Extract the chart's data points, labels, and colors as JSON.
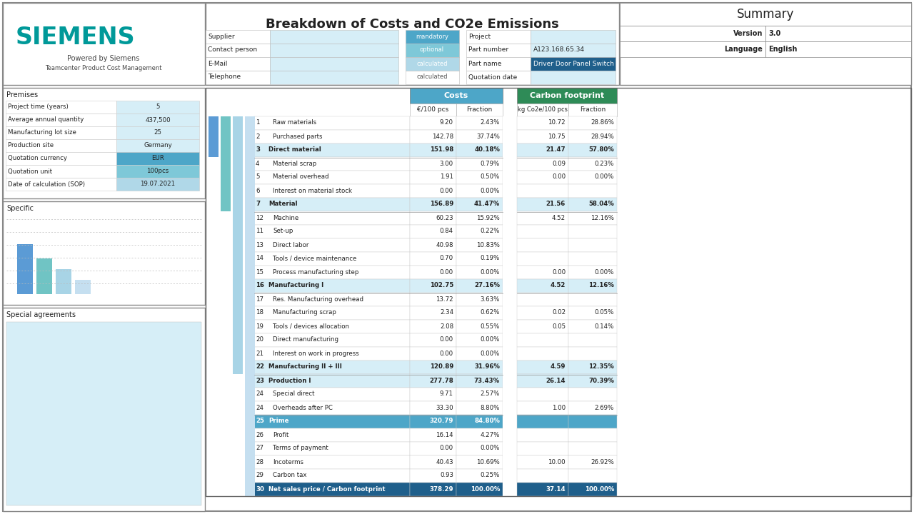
{
  "title": "Breakdown of Costs and CO2e Emissions",
  "siemens_color": "#009999",
  "summary_title": "Summary",
  "summary_version": "3.0",
  "summary_language": "English",
  "teal": "#009999",
  "medium_blue": "#4da6c8",
  "dark_blue": "#1f5f8b",
  "green": "#2e8b57",
  "light_blue": "#d6eef7",
  "lighter_blue": "#e8f6fb",
  "bg_color": "#ffffff",
  "header_rows": [
    "Supplier",
    "Contact person",
    "E-Mail",
    "Telephone"
  ],
  "field_labels": [
    "mandatory",
    "optional",
    "calculated"
  ],
  "field_colors": [
    "#4da6c8",
    "#7ec8d8",
    "#b0d8e8"
  ],
  "proj_labels": [
    "Project",
    "Part number",
    "Part name",
    "Quotation date"
  ],
  "proj_values": [
    "",
    "A123.168.65.34",
    "Driver Door Panel Switch",
    ""
  ],
  "proj_row_colors": [
    "#d6eef7",
    "#d6eef7",
    "#1f5f8b",
    "#d6eef7"
  ],
  "proj_text_colors": [
    "#222222",
    "#222222",
    "#ffffff",
    "#222222"
  ],
  "premises": [
    [
      "Project time (years)",
      "5",
      false
    ],
    [
      "Average annual quantity",
      "437,500",
      true
    ],
    [
      "Manufacturing lot size",
      "25",
      false
    ],
    [
      "Production site",
      "Germany",
      false
    ],
    [
      "Quotation currency",
      "EUR",
      true
    ],
    [
      "Quotation unit",
      "100pcs",
      true
    ],
    [
      "Date of calculation (SOP)",
      "19.07.2021",
      true
    ]
  ],
  "prem_val_special": {
    "EUR": "#4da6c8",
    "100pcs": "#7ec8d8",
    "19.07.2021": "#b0d8e8"
  },
  "rows": [
    {
      "num": "1",
      "name": "Raw materials",
      "cost": "9.20",
      "cost_frac": "2.43%",
      "co2": "10.72",
      "co2_frac": "28.86%",
      "bold": false,
      "special": ""
    },
    {
      "num": "2",
      "name": "Purchased parts",
      "cost": "142.78",
      "cost_frac": "37.74%",
      "co2": "10.75",
      "co2_frac": "28.94%",
      "bold": false,
      "special": ""
    },
    {
      "num": "3",
      "name": "Direct material",
      "cost": "151.98",
      "cost_frac": "40.18%",
      "co2": "21.47",
      "co2_frac": "57.80%",
      "bold": true,
      "special": ""
    },
    {
      "num": "4",
      "name": "Material scrap",
      "cost": "3.00",
      "cost_frac": "0.79%",
      "co2": "0.09",
      "co2_frac": "0.23%",
      "bold": false,
      "special": ""
    },
    {
      "num": "5",
      "name": "Material overhead",
      "cost": "1.91",
      "cost_frac": "0.50%",
      "co2": "0.00",
      "co2_frac": "0.00%",
      "bold": false,
      "special": ""
    },
    {
      "num": "6",
      "name": "Interest on material stock",
      "cost": "0.00",
      "cost_frac": "0.00%",
      "co2": "",
      "co2_frac": "",
      "bold": false,
      "special": ""
    },
    {
      "num": "7",
      "name": "Material",
      "cost": "156.89",
      "cost_frac": "41.47%",
      "co2": "21.56",
      "co2_frac": "58.04%",
      "bold": true,
      "special": ""
    },
    {
      "num": "12",
      "name": "Machine",
      "cost": "60.23",
      "cost_frac": "15.92%",
      "co2": "4.52",
      "co2_frac": "12.16%",
      "bold": false,
      "special": ""
    },
    {
      "num": "11",
      "name": "Set-up",
      "cost": "0.84",
      "cost_frac": "0.22%",
      "co2": "",
      "co2_frac": "",
      "bold": false,
      "special": ""
    },
    {
      "num": "13",
      "name": "Direct labor",
      "cost": "40.98",
      "cost_frac": "10.83%",
      "co2": "",
      "co2_frac": "",
      "bold": false,
      "special": ""
    },
    {
      "num": "14",
      "name": "Tools / device maintenance",
      "cost": "0.70",
      "cost_frac": "0.19%",
      "co2": "",
      "co2_frac": "",
      "bold": false,
      "special": ""
    },
    {
      "num": "15",
      "name": "Process manufacturing step",
      "cost": "0.00",
      "cost_frac": "0.00%",
      "co2": "0.00",
      "co2_frac": "0.00%",
      "bold": false,
      "special": ""
    },
    {
      "num": "16",
      "name": "Manufacturing I",
      "cost": "102.75",
      "cost_frac": "27.16%",
      "co2": "4.52",
      "co2_frac": "12.16%",
      "bold": true,
      "special": ""
    },
    {
      "num": "17",
      "name": "Res. Manufacturing overhead",
      "cost": "13.72",
      "cost_frac": "3.63%",
      "co2": "",
      "co2_frac": "",
      "bold": false,
      "special": ""
    },
    {
      "num": "18",
      "name": "Manufacturing scrap",
      "cost": "2.34",
      "cost_frac": "0.62%",
      "co2": "0.02",
      "co2_frac": "0.05%",
      "bold": false,
      "special": ""
    },
    {
      "num": "19",
      "name": "Tools / devices allocation",
      "cost": "2.08",
      "cost_frac": "0.55%",
      "co2": "0.05",
      "co2_frac": "0.14%",
      "bold": false,
      "special": ""
    },
    {
      "num": "20",
      "name": "Direct manufacturing",
      "cost": "0.00",
      "cost_frac": "0.00%",
      "co2": "",
      "co2_frac": "",
      "bold": false,
      "special": ""
    },
    {
      "num": "21",
      "name": "Interest on work in progress",
      "cost": "0.00",
      "cost_frac": "0.00%",
      "co2": "",
      "co2_frac": "",
      "bold": false,
      "special": ""
    },
    {
      "num": "22",
      "name": "Manufacturing II + III",
      "cost": "120.89",
      "cost_frac": "31.96%",
      "co2": "4.59",
      "co2_frac": "12.35%",
      "bold": true,
      "special": ""
    },
    {
      "num": "23",
      "name": "Production I",
      "cost": "277.78",
      "cost_frac": "73.43%",
      "co2": "26.14",
      "co2_frac": "70.39%",
      "bold": true,
      "special": ""
    },
    {
      "num": "24",
      "name": "Special direct",
      "cost": "9.71",
      "cost_frac": "2.57%",
      "co2": "",
      "co2_frac": "",
      "bold": false,
      "special": ""
    },
    {
      "num": "24",
      "name": "Overheads after PC",
      "cost": "33.30",
      "cost_frac": "8.80%",
      "co2": "1.00",
      "co2_frac": "2.69%",
      "bold": false,
      "special": ""
    },
    {
      "num": "25",
      "name": "Prime",
      "cost": "320.79",
      "cost_frac": "84.80%",
      "co2": "",
      "co2_frac": "",
      "bold": true,
      "special": "prime"
    },
    {
      "num": "26",
      "name": "Profit",
      "cost": "16.14",
      "cost_frac": "4.27%",
      "co2": "",
      "co2_frac": "",
      "bold": false,
      "special": ""
    },
    {
      "num": "27",
      "name": "Terms of payment",
      "cost": "0.00",
      "cost_frac": "0.00%",
      "co2": "",
      "co2_frac": "",
      "bold": false,
      "special": ""
    },
    {
      "num": "28",
      "name": "Incoterms",
      "cost": "40.43",
      "cost_frac": "10.69%",
      "co2": "10.00",
      "co2_frac": "26.92%",
      "bold": false,
      "special": ""
    },
    {
      "num": "29",
      "name": "Carbon tax",
      "cost": "0.93",
      "cost_frac": "0.25%",
      "co2": "",
      "co2_frac": "",
      "bold": false,
      "special": ""
    },
    {
      "num": "30",
      "name": "Net sales price / Carbon footprint",
      "cost": "378.29",
      "cost_frac": "100.00%",
      "co2": "37.14",
      "co2_frac": "100.00%",
      "bold": true,
      "special": "net_sales"
    }
  ],
  "separators_after": [
    2,
    6,
    12,
    18,
    21
  ],
  "bar_segs": [
    {
      "r0": 0,
      "r1": 2,
      "color": "#5b9bd5",
      "depth": 0
    },
    {
      "r0": 0,
      "r1": 6,
      "color": "#70c4c4",
      "depth": 1
    },
    {
      "r0": 0,
      "r1": 18,
      "color": "#a8d4e6",
      "depth": 2
    },
    {
      "r0": 0,
      "r1": 27,
      "color": "#c5dff0",
      "depth": 3
    }
  ]
}
